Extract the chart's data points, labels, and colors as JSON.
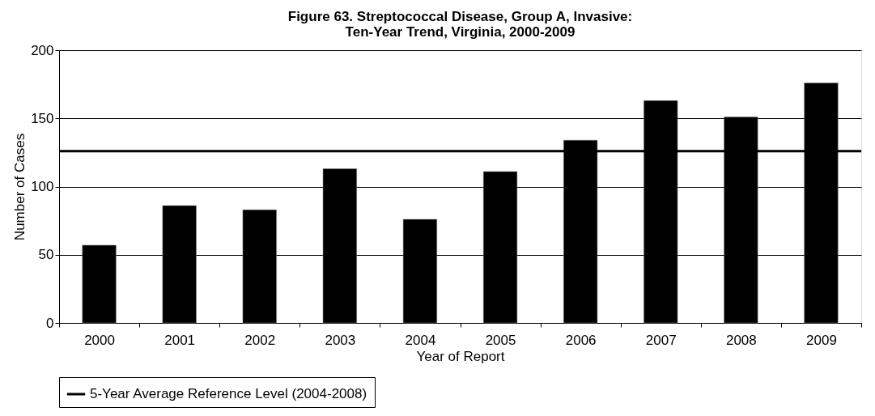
{
  "chart_data": {
    "type": "bar",
    "title": [
      "Figure 63. Streptococcal Disease, Group A, Invasive:",
      "Ten-Year Trend, Virginia, 2000-2009"
    ],
    "xlabel": "Year of Report",
    "ylabel": "Number of Cases",
    "categories": [
      "2000",
      "2001",
      "2002",
      "2003",
      "2004",
      "2005",
      "2006",
      "2007",
      "2008",
      "2009"
    ],
    "values": [
      57,
      86,
      83,
      113,
      76,
      111,
      134,
      163,
      151,
      176
    ],
    "color": "#000000",
    "ylim": [
      0,
      200
    ],
    "yticks": [
      0,
      50,
      100,
      150,
      200
    ],
    "grid": "y",
    "legend": "bottom",
    "ref_lines": [
      {
        "axis": "y",
        "value": 126,
        "label": "5-Year Average Reference Level (2004-2008)",
        "color": "#000000"
      }
    ]
  }
}
